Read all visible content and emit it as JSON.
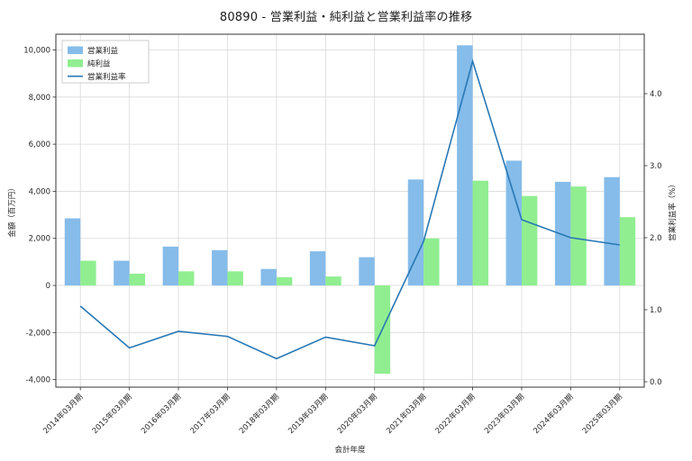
{
  "chart_data": {
    "type": "bar",
    "title": "80890 - 営業利益・純利益と営業利益率の推移",
    "xlabel": "会計年度",
    "ylabel_left": "金額（百万円）",
    "ylabel_right": "営業利益率（%）",
    "categories": [
      "2014年03月期",
      "2015年03月期",
      "2016年03月期",
      "2017年03月期",
      "2018年03月期",
      "2019年03月期",
      "2020年03月期",
      "2021年03月期",
      "2022年03月期",
      "2023年03月期",
      "2024年03月期",
      "2025年03月期"
    ],
    "series": [
      {
        "name": "営業利益",
        "type": "bar",
        "axis": "left",
        "color": "#85BCEA",
        "values": [
          2850,
          1050,
          1650,
          1500,
          700,
          1450,
          1200,
          4500,
          10200,
          5300,
          4400,
          4600
        ]
      },
      {
        "name": "純利益",
        "type": "bar",
        "axis": "left",
        "color": "#90EE90",
        "values": [
          1050,
          500,
          600,
          600,
          350,
          380,
          -3750,
          2000,
          4450,
          3800,
          4200,
          2900
        ]
      },
      {
        "name": "営業利益率",
        "type": "line",
        "axis": "right",
        "color": "#2878B5",
        "values": [
          1.05,
          0.47,
          0.7,
          0.63,
          0.32,
          0.62,
          0.5,
          1.95,
          4.45,
          2.25,
          2.0,
          1.9
        ]
      }
    ],
    "ylim_left": [
      -4320,
      10670
    ],
    "ylim_right": [
      -0.075,
      4.825
    ],
    "yticks_left": [
      -4000,
      -2000,
      0,
      2000,
      4000,
      6000,
      8000,
      10000
    ],
    "yticks_right": [
      0.0,
      1.0,
      2.0,
      3.0,
      4.0
    ],
    "grid": true,
    "legend_position": "upper-left",
    "colors": {
      "grid": "#d9d9d9",
      "axis": "#333333",
      "tick_text": "#262626",
      "legend_border": "#cccccc",
      "background": "#ffffff"
    }
  }
}
